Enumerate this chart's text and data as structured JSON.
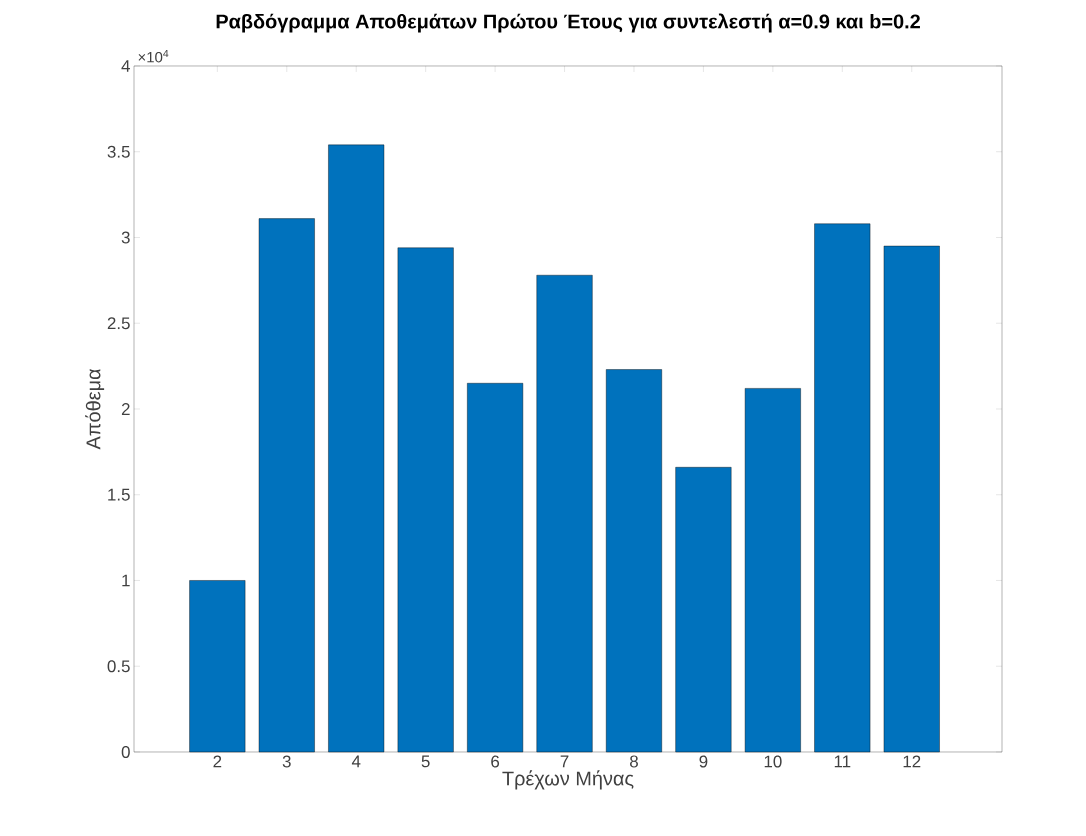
{
  "chart_data": {
    "type": "bar",
    "title": "Ραβδόγραμμα Αποθεμάτων Πρώτου Έτους για συντελεστή α=0.9 και b=0.2",
    "xlabel": "Τρέχων Μήνας",
    "ylabel": "Απόθεμα",
    "annotations": [
      "×10$^{4}$"
    ],
    "x": [
      2,
      3,
      4,
      5,
      6,
      7,
      8,
      9,
      10,
      11,
      12
    ],
    "values": [
      1.0,
      3.11,
      3.54,
      2.94,
      2.15,
      2.78,
      2.23,
      1.66,
      2.12,
      3.08,
      2.95
    ],
    "color": "#0072bd",
    "xlim": [
      0.8,
      13.3
    ],
    "ylim": [
      0,
      4
    ],
    "xticks": [
      2,
      3,
      4,
      5,
      6,
      7,
      8,
      9,
      10,
      11,
      12
    ],
    "yticks": [
      0,
      0.5,
      1,
      1.5,
      2,
      2.5,
      3,
      3.5,
      4
    ]
  }
}
